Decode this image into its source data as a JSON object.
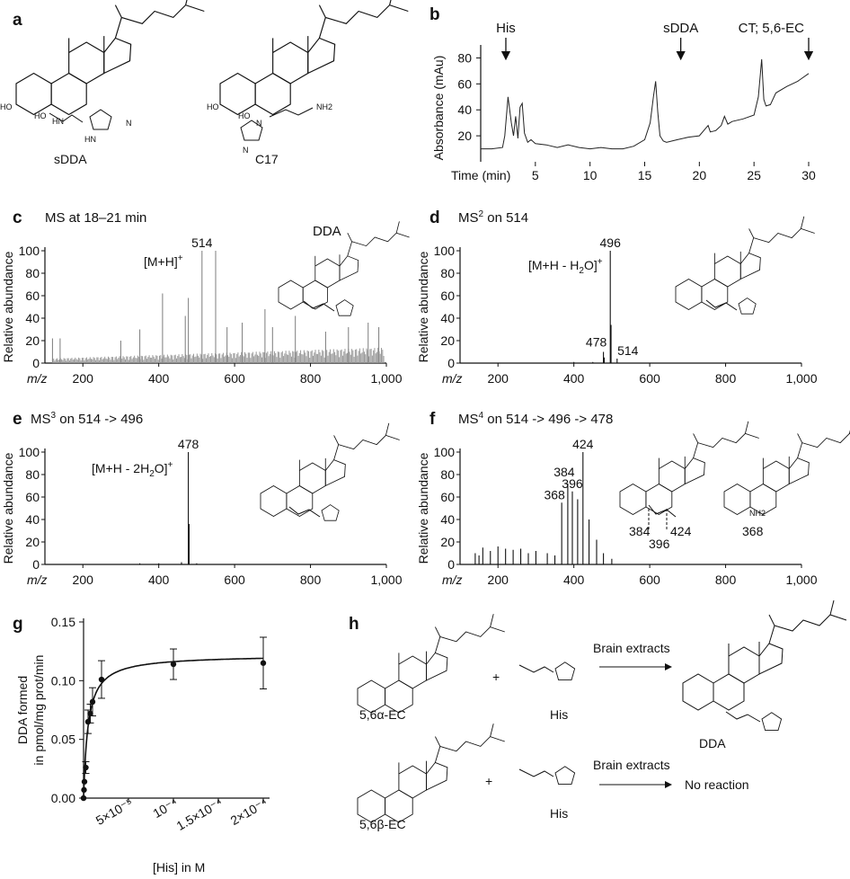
{
  "panels": {
    "a": {
      "letter": "a",
      "structures": [
        {
          "name": "sDDA",
          "groups": [
            "HO",
            "HO",
            "HN",
            "N",
            "HN"
          ]
        },
        {
          "name": "C17",
          "groups": [
            "HO",
            "HO",
            "NH2",
            "N",
            "N"
          ]
        }
      ]
    },
    "b": {
      "letter": "b",
      "ylabel": "Absorbance (mAu)",
      "xlabel": "Time (min)",
      "arrows": [
        {
          "label": "His",
          "time": 2.3
        },
        {
          "label": "sDDA",
          "time": 18.3
        },
        {
          "label": "CT; 5,6-EC",
          "time": 30
        }
      ]
    },
    "c": {
      "letter": "c",
      "title": "MS at 18–21 min",
      "annotation": "[M+H]",
      "annotation_sup": "+",
      "peak_label": "514",
      "structure_label": "DDA"
    },
    "d": {
      "letter": "d",
      "title_main": "MS",
      "title_sup": "2",
      "title_rest": " on 514",
      "annotation": "[M+H - H",
      "annotation_sub": "2",
      "annotation_end": "O]",
      "annotation_sup": "+",
      "peak_labels": [
        "496",
        "478",
        "514"
      ]
    },
    "e": {
      "letter": "e",
      "title_main": "MS",
      "title_sup": "3",
      "title_rest": " on 514 -> 496",
      "annotation": "[M+H - 2H",
      "annotation_sub": "2",
      "annotation_end": "O]",
      "annotation_sup": "+",
      "peak_labels": [
        "478"
      ]
    },
    "f": {
      "letter": "f",
      "title_main": "MS",
      "title_sup": "4",
      "title_rest": " on 514  -> 496 -> 478",
      "peak_labels": [
        "424",
        "384",
        "396",
        "368"
      ],
      "fragment_labels": [
        "384",
        "396",
        "424",
        "368"
      ]
    },
    "g": {
      "letter": "g",
      "ylabel1": "DDA formed",
      "ylabel2": "in pmol/mg prot/min",
      "xlabel": "[His] in M",
      "yticks": [
        "0.00",
        "0.05",
        "0.10",
        "0.15"
      ]
    },
    "h": {
      "letter": "h",
      "reaction1": {
        "reactant": "5,6α-EC",
        "plus": "+",
        "partner": "His",
        "condition": "Brain extracts",
        "product": "DDA"
      },
      "reaction2": {
        "reactant": "5,6β-EC",
        "plus": "+",
        "partner": "His",
        "condition": "Brain extracts",
        "product": "No reaction"
      }
    }
  },
  "ms_axes": {
    "ylabel": "Relative abundance",
    "xlabel": "m/z",
    "yticks": [
      "0",
      "20",
      "40",
      "60",
      "80",
      "100"
    ],
    "xticks": [
      "200",
      "400",
      "600",
      "800",
      "1,000"
    ]
  },
  "chart_data": [
    {
      "panel": "b",
      "type": "line",
      "xlabel": "Time (min)",
      "ylabel": "Absorbance (mAu)",
      "xlim": [
        0,
        30
      ],
      "ylim": [
        0,
        90
      ],
      "xticks": [
        5,
        10,
        15,
        20,
        25,
        30
      ],
      "yticks": [
        20,
        40,
        60,
        80
      ],
      "x": [
        0,
        1,
        2,
        2.2,
        2.5,
        2.8,
        3,
        3.2,
        3.4,
        3.6,
        3.8,
        4,
        4.3,
        4.6,
        5,
        6,
        7,
        8,
        9,
        10,
        11,
        12,
        13,
        14,
        15,
        15.5,
        15.8,
        16,
        16.2,
        16.4,
        16.7,
        17,
        18,
        19,
        20,
        20.5,
        20.8,
        21,
        21.5,
        22,
        22.3,
        22.6,
        23,
        24,
        25,
        25.4,
        25.7,
        25.9,
        26.1,
        26.5,
        27,
        28,
        29,
        30
      ],
      "y": [
        10,
        10,
        11,
        20,
        50,
        30,
        20,
        35,
        18,
        42,
        45,
        22,
        15,
        17,
        14,
        13,
        11,
        13,
        11,
        10,
        11,
        10,
        10,
        12,
        17,
        30,
        50,
        62,
        38,
        20,
        16,
        15,
        17,
        19,
        20,
        25,
        28,
        23,
        24,
        28,
        35,
        29,
        31,
        33,
        36,
        50,
        79,
        48,
        43,
        44,
        53,
        58,
        62,
        68
      ]
    },
    {
      "panel": "c",
      "type": "bar",
      "xlabel": "m/z",
      "ylabel": "Relative abundance",
      "xlim": [
        100,
        1000
      ],
      "ylim": [
        0,
        100
      ],
      "peaks": [
        [
          514,
          100
        ],
        [
          550,
          100
        ],
        [
          410,
          62
        ],
        [
          478,
          58
        ],
        [
          470,
          42
        ],
        [
          680,
          48
        ],
        [
          760,
          42
        ],
        [
          620,
          36
        ],
        [
          580,
          32
        ],
        [
          350,
          30
        ],
        [
          900,
          32
        ],
        [
          952,
          36
        ],
        [
          980,
          32
        ],
        [
          120,
          22
        ],
        [
          140,
          22
        ],
        [
          300,
          20
        ],
        [
          700,
          32
        ],
        [
          840,
          28
        ]
      ]
    },
    {
      "panel": "d",
      "type": "bar",
      "xlabel": "m/z",
      "ylabel": "Relative abundance",
      "xlim": [
        100,
        1000
      ],
      "ylim": [
        0,
        100
      ],
      "peaks": [
        [
          496,
          100
        ],
        [
          478,
          10
        ],
        [
          514,
          4
        ],
        [
          498,
          34
        ],
        [
          480,
          5
        ],
        [
          450,
          1
        ],
        [
          400,
          1
        ]
      ]
    },
    {
      "panel": "e",
      "type": "bar",
      "xlabel": "m/z",
      "ylabel": "Relative abundance",
      "xlim": [
        100,
        1000
      ],
      "ylim": [
        0,
        100
      ],
      "peaks": [
        [
          478,
          100
        ],
        [
          480,
          36
        ],
        [
          460,
          2
        ],
        [
          400,
          1
        ],
        [
          350,
          1
        ],
        [
          500,
          1
        ]
      ]
    },
    {
      "panel": "f",
      "type": "bar",
      "xlabel": "m/z",
      "ylabel": "Relative abundance",
      "xlim": [
        100,
        1000
      ],
      "ylim": [
        0,
        100
      ],
      "peaks": [
        [
          424,
          100
        ],
        [
          384,
          72
        ],
        [
          396,
          65
        ],
        [
          368,
          55
        ],
        [
          410,
          58
        ],
        [
          440,
          40
        ],
        [
          460,
          22
        ],
        [
          478,
          10
        ],
        [
          330,
          10
        ],
        [
          300,
          12
        ],
        [
          260,
          14
        ],
        [
          240,
          13
        ],
        [
          220,
          14
        ],
        [
          200,
          16
        ],
        [
          180,
          12
        ],
        [
          160,
          15
        ],
        [
          150,
          8
        ],
        [
          140,
          10
        ],
        [
          280,
          10
        ],
        [
          350,
          8
        ],
        [
          500,
          5
        ]
      ]
    },
    {
      "panel": "g",
      "type": "scatter",
      "xlabel": "[His] in M",
      "ylabel": "DDA formed in pmol/mg prot/min",
      "xlim": [
        0,
        0.0002
      ],
      "ylim": [
        0,
        0.15
      ],
      "xticks": [
        "5×10⁻⁵",
        "10⁻⁴",
        "1.5×10⁻⁴",
        "2×10⁻⁴"
      ],
      "points": [
        [
          0,
          0
        ],
        [
          5e-07,
          0.007
        ],
        [
          1e-06,
          0.014
        ],
        [
          2.5e-06,
          0.026
        ],
        [
          5e-06,
          0.065
        ],
        [
          7.5e-06,
          0.072
        ],
        [
          1e-05,
          0.082
        ],
        [
          2e-05,
          0.101
        ],
        [
          0.0001,
          0.114
        ],
        [
          0.0002,
          0.115
        ]
      ],
      "errors": [
        0,
        0,
        0,
        0.005,
        0.01,
        0.008,
        0.012,
        0.016,
        0.013,
        0.022
      ],
      "fit": {
        "type": "Michaelis-Menten",
        "vmax": 0.122,
        "km": 5e-06
      }
    }
  ]
}
